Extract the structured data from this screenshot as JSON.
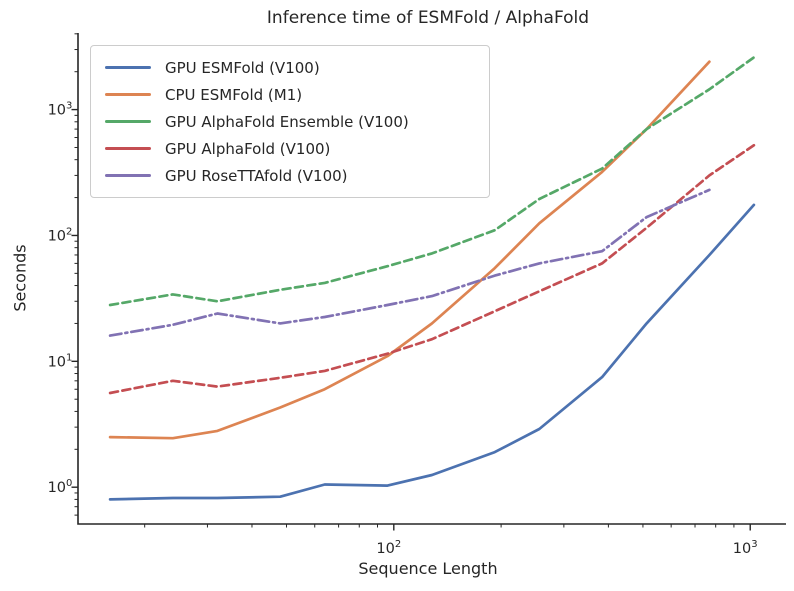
{
  "chart_data": {
    "type": "line",
    "title": "Inference time of ESMFold / AlphaFold",
    "xlabel": "Sequence Length",
    "ylabel": "Seconds",
    "x_scale": "log",
    "y_scale": "log",
    "xlim": [
      13,
      1260
    ],
    "ylim": [
      0.51,
      4060
    ],
    "x_major_ticks": [
      100,
      1000
    ],
    "y_major_ticks": [
      1,
      10,
      100,
      1000
    ],
    "grid": false,
    "legend_position": "upper left",
    "text_color": "#262626",
    "spine_color": "#262626",
    "series": [
      {
        "name": "GPU ESMFold (V100)",
        "color": "#4C72B0",
        "style": "solid",
        "x": [
          16,
          24,
          32,
          48,
          64,
          96,
          128,
          192,
          256,
          384,
          512,
          768,
          1024
        ],
        "y": [
          0.8,
          0.82,
          0.82,
          0.84,
          1.05,
          1.03,
          1.25,
          1.9,
          2.9,
          7.5,
          20,
          70,
          175
        ]
      },
      {
        "name": "CPU ESMFold (M1)",
        "color": "#DD8452",
        "style": "solid",
        "x": [
          16,
          24,
          32,
          48,
          64,
          96,
          128,
          192,
          256,
          384,
          512,
          768
        ],
        "y": [
          2.5,
          2.45,
          2.8,
          4.3,
          6.0,
          11,
          20,
          55,
          125,
          320,
          700,
          2400
        ]
      },
      {
        "name": "GPU AlphaFold Ensemble (V100)",
        "color": "#55A868",
        "style": "dashed",
        "x": [
          16,
          24,
          32,
          48,
          64,
          96,
          128,
          192,
          256,
          384,
          512,
          768,
          1024
        ],
        "y": [
          28,
          34,
          30,
          37,
          42,
          57,
          72,
          110,
          195,
          340,
          700,
          1450,
          2600
        ]
      },
      {
        "name": "GPU AlphaFold (V100)",
        "color": "#C44E52",
        "style": "dashed",
        "x": [
          16,
          24,
          32,
          48,
          64,
          96,
          128,
          192,
          256,
          384,
          512,
          768,
          1024
        ],
        "y": [
          5.6,
          7.0,
          6.3,
          7.4,
          8.4,
          11.5,
          15,
          25,
          36,
          60,
          115,
          300,
          520
        ]
      },
      {
        "name": "GPU RoseTTAfold (V100)",
        "color": "#8172B3",
        "style": "dashdot",
        "x": [
          16,
          24,
          32,
          48,
          64,
          96,
          128,
          192,
          256,
          384,
          512,
          768
        ],
        "y": [
          16,
          19.5,
          24,
          20,
          22.5,
          28,
          33,
          48,
          60,
          75,
          140,
          230
        ]
      }
    ]
  }
}
